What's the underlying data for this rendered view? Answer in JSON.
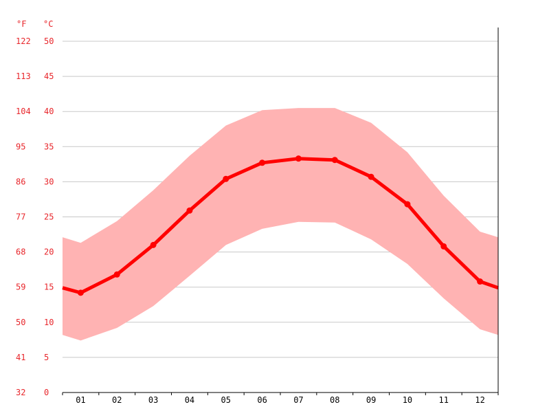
{
  "chart_data": {
    "type": "line",
    "units": {
      "fahrenheit": "°F",
      "celsius": "°C"
    },
    "categories": [
      "01",
      "02",
      "03",
      "04",
      "05",
      "06",
      "07",
      "08",
      "09",
      "10",
      "11",
      "12"
    ],
    "y_ticks_celsius": [
      "0",
      "5",
      "10",
      "15",
      "20",
      "25",
      "30",
      "35",
      "40",
      "45",
      "50"
    ],
    "y_ticks_fahrenheit": [
      "32",
      "41",
      "50",
      "59",
      "68",
      "77",
      "86",
      "95",
      "104",
      "113",
      "122"
    ],
    "ylim": [
      0,
      50
    ],
    "grid": true,
    "series": [
      {
        "role": "average",
        "x": [
          0.5,
          1.5,
          2.5,
          3.5,
          4.5,
          5.5,
          6.5,
          7.5,
          8.5,
          9.5,
          10.5,
          11.5
        ],
        "values": [
          14.2,
          16.8,
          21.0,
          25.9,
          30.4,
          32.7,
          33.3,
          33.1,
          30.7,
          26.8,
          20.8,
          15.8
        ],
        "color": "#ff0000"
      },
      {
        "role": "maximum",
        "x": [
          0,
          0.5,
          1.5,
          2.5,
          3.5,
          4.5,
          5.5,
          6.5,
          7.5,
          8.5,
          9.5,
          10.5,
          11.5,
          12
        ],
        "values": [
          22.1,
          21.3,
          24.4,
          28.8,
          33.7,
          38.0,
          40.2,
          40.5,
          40.5,
          38.4,
          34.2,
          28.0,
          22.9,
          22.1
        ],
        "color": "#ffb3b3"
      },
      {
        "role": "minimum",
        "x": [
          0,
          0.5,
          1.5,
          2.5,
          3.5,
          4.5,
          5.5,
          6.5,
          7.5,
          8.5,
          9.5,
          10.5,
          11.5,
          12
        ],
        "values": [
          8.2,
          7.4,
          9.2,
          12.3,
          16.6,
          21.0,
          23.3,
          24.3,
          24.2,
          21.8,
          18.3,
          13.4,
          9.0,
          8.2
        ],
        "color": "#ffb3b3"
      }
    ],
    "boundary": {
      "x": [
        0,
        12
      ],
      "values": [
        14.9,
        14.9
      ]
    }
  }
}
